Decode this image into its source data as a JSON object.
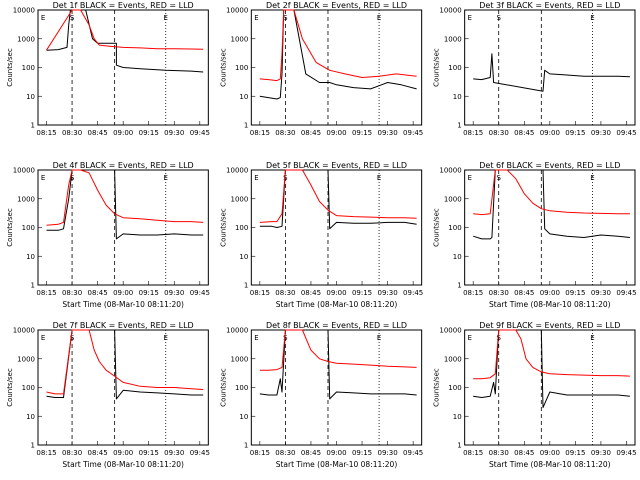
{
  "chart_data": {
    "type": "line",
    "grid_layout": "3x3",
    "colors": {
      "events": "#000000",
      "lld": "#ff0000"
    },
    "x_ticks": [
      "08:15",
      "08:30",
      "08:45",
      "09:00",
      "09:15",
      "09:30",
      "09:45"
    ],
    "y_ticks": [
      "1",
      "10",
      "100",
      "1000",
      "10000"
    ],
    "ylim": [
      1,
      10000
    ],
    "yscale": "log",
    "ylabel": "Counts/sec",
    "xlabel": "Start Time (08-Mar-10 08:11:20)",
    "marker_labels": [
      "E",
      "S",
      "E"
    ],
    "panels": [
      {
        "title": "Det 1f BLACK = Events, RED = LLD",
        "show_xlabel": false,
        "series": [
          {
            "name": "Events",
            "x": [
              0.05,
              0.12,
              0.17,
              0.18,
              0.19,
              0.2,
              0.22,
              0.25,
              0.28,
              0.32,
              0.35,
              0.4,
              0.46,
              0.46,
              0.5,
              0.6,
              0.75,
              0.9,
              0.97
            ],
            "y": [
              400,
              420,
              500,
              3000,
              10000,
              10000,
              10000,
              10000,
              10000,
              1000,
              700,
              700,
              700,
              120,
              100,
              90,
              80,
              75,
              70
            ]
          },
          {
            "name": "LLD",
            "x": [
              0.05,
              0.2,
              0.25,
              0.3,
              0.33,
              0.36,
              0.42,
              0.5,
              0.6,
              0.7,
              0.8,
              0.9,
              0.97
            ],
            "y": [
              400,
              10000,
              10000,
              3000,
              1000,
              600,
              550,
              500,
              480,
              450,
              450,
              440,
              430
            ]
          }
        ]
      },
      {
        "title": "Det 2f BLACK = Events, RED = LLD",
        "show_xlabel": false,
        "series": [
          {
            "name": "Events",
            "x": [
              0.05,
              0.1,
              0.15,
              0.17,
              0.18,
              0.19,
              0.22,
              0.25,
              0.32,
              0.4,
              0.46,
              0.5,
              0.6,
              0.7,
              0.8,
              0.88,
              0.97
            ],
            "y": [
              10,
              9,
              8,
              9,
              60,
              10000,
              10000,
              10000,
              60,
              30,
              30,
              25,
              20,
              18,
              30,
              25,
              18
            ]
          },
          {
            "name": "LLD",
            "x": [
              0.05,
              0.1,
              0.15,
              0.17,
              0.18,
              0.19,
              0.22,
              0.25,
              0.3,
              0.38,
              0.46,
              0.55,
              0.65,
              0.75,
              0.85,
              0.97
            ],
            "y": [
              40,
              38,
              35,
              40,
              300,
              10000,
              10000,
              10000,
              1000,
              150,
              80,
              60,
              45,
              50,
              60,
              50
            ]
          }
        ]
      },
      {
        "title": "Det 3f BLACK = Events, RED = LLD",
        "show_xlabel": false,
        "series": [
          {
            "name": "Events",
            "x": [
              0.05,
              0.1,
              0.15,
              0.16,
              0.17,
              0.46,
              0.47,
              0.5,
              0.6,
              0.7,
              0.8,
              0.9,
              0.97
            ],
            "y": [
              40,
              38,
              45,
              300,
              30,
              15,
              80,
              60,
              55,
              50,
              50,
              50,
              48
            ]
          },
          {
            "name": "LLD",
            "x": [],
            "y": []
          }
        ]
      },
      {
        "title": "Det 4f BLACK = Events, RED = LLD",
        "show_xlabel": true,
        "series": [
          {
            "name": "Events",
            "x": [
              0.05,
              0.12,
              0.15,
              0.18,
              0.2,
              0.22,
              0.25,
              0.3,
              0.35,
              0.4,
              0.45,
              0.46,
              0.5,
              0.6,
              0.7,
              0.8,
              0.9,
              0.97
            ],
            "y": [
              80,
              80,
              90,
              1000,
              10000,
              10000,
              10000,
              10000,
              10000,
              10000,
              10000,
              40,
              60,
              55,
              55,
              60,
              55,
              55
            ]
          },
          {
            "name": "LLD",
            "x": [
              0.05,
              0.12,
              0.15,
              0.18,
              0.2,
              0.25,
              0.3,
              0.35,
              0.4,
              0.45,
              0.5,
              0.6,
              0.7,
              0.8,
              0.9,
              0.97
            ],
            "y": [
              120,
              130,
              150,
              3000,
              10000,
              10000,
              8000,
              2000,
              600,
              300,
              220,
              200,
              180,
              160,
              160,
              150
            ]
          }
        ]
      },
      {
        "title": "Det 5f BLACK = Events, RED = LLD",
        "show_xlabel": true,
        "series": [
          {
            "name": "Events",
            "x": [
              0.05,
              0.12,
              0.15,
              0.18,
              0.2,
              0.25,
              0.35,
              0.4,
              0.45,
              0.46,
              0.5,
              0.6,
              0.7,
              0.8,
              0.9,
              0.97
            ],
            "y": [
              110,
              110,
              100,
              110,
              10000,
              10000,
              10000,
              10000,
              10000,
              90,
              150,
              140,
              140,
              150,
              150,
              130
            ]
          },
          {
            "name": "LLD",
            "x": [
              0.05,
              0.12,
              0.15,
              0.18,
              0.2,
              0.25,
              0.3,
              0.35,
              0.4,
              0.45,
              0.5,
              0.6,
              0.7,
              0.8,
              0.9,
              0.97
            ],
            "y": [
              150,
              160,
              160,
              300,
              10000,
              10000,
              10000,
              3000,
              800,
              400,
              260,
              240,
              230,
              220,
              220,
              210
            ]
          }
        ]
      },
      {
        "title": "Det 6f BLACK = Events, RED = LLD",
        "show_xlabel": true,
        "series": [
          {
            "name": "Events",
            "x": [
              0.05,
              0.1,
              0.15,
              0.16,
              0.18,
              0.2,
              0.3,
              0.4,
              0.46,
              0.47,
              0.5,
              0.6,
              0.7,
              0.8,
              0.9,
              0.97
            ],
            "y": [
              50,
              40,
              40,
              45,
              10000,
              10000,
              10000,
              10000,
              10000,
              90,
              60,
              50,
              45,
              55,
              50,
              45
            ]
          },
          {
            "name": "LLD",
            "x": [
              0.05,
              0.1,
              0.15,
              0.18,
              0.2,
              0.25,
              0.3,
              0.35,
              0.4,
              0.45,
              0.5,
              0.6,
              0.7,
              0.8,
              0.9,
              0.97
            ],
            "y": [
              300,
              280,
              300,
              10000,
              10000,
              10000,
              5000,
              1500,
              700,
              450,
              380,
              340,
              320,
              310,
              300,
              300
            ]
          }
        ]
      },
      {
        "title": "Det 7f BLACK = Events, RED = LLD",
        "show_xlabel": true,
        "series": [
          {
            "name": "Events",
            "x": [
              0.05,
              0.1,
              0.15,
              0.2,
              0.22,
              0.25,
              0.3,
              0.35,
              0.4,
              0.45,
              0.46,
              0.5,
              0.6,
              0.7,
              0.8,
              0.9,
              0.97
            ],
            "y": [
              50,
              45,
              45,
              10000,
              10000,
              10000,
              10000,
              10000,
              10000,
              10000,
              40,
              80,
              70,
              65,
              60,
              55,
              55
            ]
          },
          {
            "name": "LLD",
            "x": [
              0.05,
              0.1,
              0.15,
              0.2,
              0.25,
              0.3,
              0.33,
              0.36,
              0.4,
              0.45,
              0.5,
              0.6,
              0.7,
              0.8,
              0.9,
              0.97
            ],
            "y": [
              70,
              60,
              60,
              10000,
              10000,
              10000,
              2000,
              800,
              400,
              250,
              150,
              110,
              100,
              100,
              90,
              85
            ]
          }
        ]
      },
      {
        "title": "Det 8f BLACK = Events, RED = LLD",
        "show_xlabel": true,
        "series": [
          {
            "name": "Events",
            "x": [
              0.05,
              0.1,
              0.15,
              0.17,
              0.18,
              0.2,
              0.25,
              0.35,
              0.4,
              0.45,
              0.46,
              0.5,
              0.6,
              0.7,
              0.8,
              0.9,
              0.97
            ],
            "y": [
              60,
              55,
              55,
              200,
              70,
              10000,
              10000,
              10000,
              10000,
              10000,
              40,
              70,
              65,
              60,
              60,
              60,
              55
            ]
          },
          {
            "name": "LLD",
            "x": [
              0.05,
              0.1,
              0.15,
              0.18,
              0.2,
              0.25,
              0.3,
              0.35,
              0.4,
              0.45,
              0.5,
              0.6,
              0.7,
              0.8,
              0.9,
              0.97
            ],
            "y": [
              400,
              400,
              420,
              500,
              10000,
              10000,
              10000,
              2000,
              1000,
              800,
              700,
              650,
              600,
              550,
              520,
              500
            ]
          }
        ]
      },
      {
        "title": "Det 9f BLACK = Events, RED = LLD",
        "show_xlabel": true,
        "series": [
          {
            "name": "Events",
            "x": [
              0.05,
              0.1,
              0.15,
              0.17,
              0.18,
              0.2,
              0.25,
              0.35,
              0.4,
              0.45,
              0.46,
              0.5,
              0.6,
              0.7,
              0.8,
              0.9,
              0.97
            ],
            "y": [
              50,
              45,
              50,
              150,
              60,
              10000,
              10000,
              10000,
              10000,
              10000,
              20,
              70,
              55,
              55,
              55,
              55,
              50
            ]
          },
          {
            "name": "LLD",
            "x": [
              0.05,
              0.1,
              0.15,
              0.18,
              0.2,
              0.25,
              0.3,
              0.33,
              0.36,
              0.4,
              0.45,
              0.5,
              0.6,
              0.7,
              0.8,
              0.9,
              0.97
            ],
            "y": [
              200,
              200,
              220,
              300,
              10000,
              10000,
              10000,
              5000,
              1000,
              500,
              350,
              300,
              280,
              270,
              260,
              260,
              250
            ]
          }
        ]
      }
    ]
  }
}
